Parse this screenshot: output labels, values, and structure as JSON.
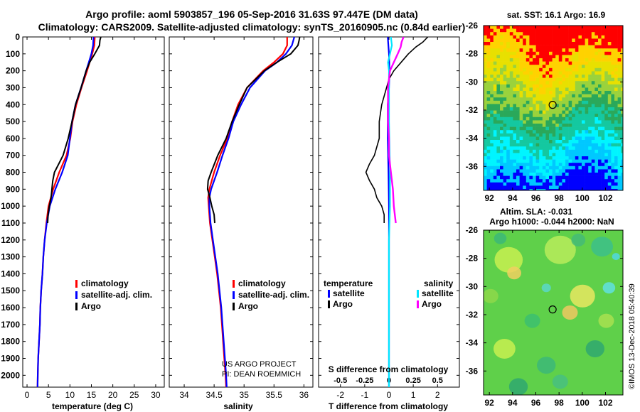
{
  "header": {
    "line1": "Argo profile: aoml 5903857_196 05-Sep-2016 31.63S 97.447E (DM data)",
    "line2": "Climatology: CARS2009. Satellite-adjusted climatology: synTS_20160905.nc (0.84d earlier)"
  },
  "colors": {
    "climatology": "#ff0000",
    "satellite": "#0000ff",
    "argo": "#000000",
    "sat_salinity": "#00e5ff",
    "argo_salinity": "#ff00ff"
  },
  "credit": {
    "line1": "US ARGO PROJECT",
    "line2": "PI: DEAN ROEMMICH"
  },
  "watermark": "©IMOS 13-Dec-2018 05:40:39",
  "chart_data": [
    {
      "type": "line",
      "id": "temperature",
      "xlabel": "temperature (deg C)",
      "ylabel": "",
      "xlim": [
        -1,
        32
      ],
      "ylim": [
        2070,
        0
      ],
      "x_ticks": [
        0,
        5,
        10,
        15,
        20,
        25,
        30
      ],
      "y_ticks": [
        0,
        100,
        200,
        300,
        400,
        500,
        600,
        700,
        800,
        900,
        1000,
        1100,
        1200,
        1300,
        1400,
        1500,
        1600,
        1700,
        1800,
        1900,
        2000
      ],
      "legend": [
        "climatology",
        "satellite-adj. clim.",
        "Argo"
      ],
      "series": [
        {
          "name": "climatology",
          "depth": [
            0,
            50,
            100,
            150,
            200,
            300,
            400,
            500,
            600,
            700,
            800,
            900,
            1000,
            1100,
            1200,
            1300,
            1400,
            1500,
            1600,
            1700,
            1800,
            1900,
            2000,
            2070
          ],
          "values": [
            15.8,
            15.7,
            15.2,
            14.6,
            14.0,
            12.7,
            11.5,
            10.6,
            10.1,
            9.2,
            7.5,
            6.1,
            5.0,
            4.5,
            4.1,
            3.8,
            3.6,
            3.3,
            3.1,
            3.0,
            2.8,
            2.6,
            2.5,
            2.45
          ]
        },
        {
          "name": "satellite-adj. clim.",
          "depth": [
            0,
            50,
            100,
            150,
            200,
            300,
            400,
            500,
            600,
            700,
            800,
            900,
            1000,
            1100,
            1200,
            1300,
            1400,
            1500,
            1600,
            1700,
            1800,
            1900,
            2000,
            2070
          ],
          "values": [
            15.5,
            15.4,
            15.0,
            14.4,
            13.8,
            12.6,
            11.3,
            10.5,
            10.0,
            9.5,
            8.2,
            6.6,
            5.3,
            4.6,
            4.1,
            3.8,
            3.6,
            3.3,
            3.1,
            3.0,
            2.8,
            2.6,
            2.5,
            2.45
          ]
        },
        {
          "name": "Argo",
          "depth": [
            0,
            20,
            50,
            100,
            150,
            200,
            250,
            300,
            400,
            500,
            600,
            700,
            750,
            800,
            850,
            900,
            950,
            1000,
            1050,
            1100
          ],
          "values": [
            17.2,
            17.0,
            16.9,
            15.8,
            14.6,
            13.8,
            13.2,
            12.6,
            11.3,
            10.5,
            9.6,
            8.4,
            7.4,
            6.4,
            6.0,
            5.8,
            5.6,
            5.2,
            4.9,
            4.8
          ]
        }
      ]
    },
    {
      "type": "line",
      "id": "salinity",
      "xlabel": "salinity",
      "ylabel": "",
      "xlim": [
        33.75,
        36.15
      ],
      "ylim": [
        2070,
        0
      ],
      "x_ticks": [
        34,
        34.5,
        35,
        35.5,
        36
      ],
      "legend": [
        "climatology",
        "satellite-adj. clim.",
        "Argo"
      ],
      "series": [
        {
          "name": "climatology",
          "depth": [
            0,
            50,
            100,
            150,
            200,
            300,
            400,
            500,
            600,
            700,
            800,
            900,
            950,
            1000,
            1100,
            1200,
            1300,
            1400,
            1500,
            1600,
            1700,
            1800,
            1900,
            2000,
            2070
          ],
          "values": [
            35.72,
            35.72,
            35.65,
            35.5,
            35.32,
            35.05,
            34.9,
            34.8,
            34.72,
            34.6,
            34.5,
            34.42,
            34.4,
            34.41,
            34.43,
            34.47,
            34.51,
            34.55,
            34.58,
            34.61,
            34.63,
            34.65,
            34.67,
            34.69,
            34.7
          ]
        },
        {
          "name": "satellite-adj. clim.",
          "depth": [
            0,
            50,
            100,
            150,
            200,
            300,
            400,
            500,
            600,
            700,
            800,
            900,
            950,
            1000,
            1100,
            1200,
            1300,
            1400,
            1500,
            1600,
            1700,
            1800,
            1900,
            2000,
            2070
          ],
          "values": [
            35.84,
            35.8,
            35.7,
            35.55,
            35.35,
            35.1,
            34.95,
            34.82,
            34.74,
            34.64,
            34.55,
            34.45,
            34.42,
            34.42,
            34.44,
            34.48,
            34.52,
            34.56,
            34.59,
            34.62,
            34.64,
            34.66,
            34.68,
            34.7,
            34.71
          ]
        },
        {
          "name": "Argo",
          "depth": [
            0,
            20,
            50,
            100,
            150,
            200,
            300,
            400,
            500,
            600,
            700,
            800,
            850,
            900,
            950,
            1000,
            1050,
            1100
          ],
          "values": [
            35.93,
            35.92,
            35.9,
            35.78,
            35.55,
            35.34,
            35.05,
            34.92,
            34.8,
            34.7,
            34.56,
            34.45,
            34.4,
            34.39,
            34.43,
            34.46,
            34.5,
            34.51
          ]
        }
      ]
    },
    {
      "type": "line",
      "id": "difference",
      "xlabel": "T difference from climatology",
      "xlabel_top": "S difference from climatology",
      "xlim": [
        -2.9,
        2.9
      ],
      "ylim": [
        2070,
        0
      ],
      "x_ticks": [
        -2,
        -1,
        0,
        1,
        2
      ],
      "x_ticks_top": [
        -0.5,
        -0.25,
        0,
        0.25,
        0.5
      ],
      "legend_left_title": "temperature",
      "legend_right_title": "salinity",
      "legend": [
        "satellite",
        "Argo",
        "satellite",
        "Argo"
      ],
      "series": [
        {
          "name": "T satellite",
          "depth": [
            0,
            100,
            200,
            300,
            400,
            600,
            800,
            1000,
            1200,
            1500,
            2000,
            2070
          ],
          "values": [
            -0.05,
            0.0,
            0.02,
            0.0,
            -0.05,
            -0.05,
            -0.02,
            0.0,
            0.0,
            0.0,
            0.0,
            0.0
          ]
        },
        {
          "name": "T Argo",
          "depth": [
            0,
            30,
            60,
            100,
            150,
            200,
            250,
            300,
            400,
            500,
            600,
            700,
            750,
            800,
            850,
            900,
            950,
            1000,
            1050,
            1100
          ],
          "values": [
            1.6,
            1.4,
            1.1,
            0.8,
            0.5,
            0.2,
            0.0,
            -0.1,
            -0.3,
            -0.4,
            -0.4,
            -0.6,
            -0.8,
            -0.95,
            -0.8,
            -0.6,
            -0.5,
            -0.3,
            -0.2,
            -0.2
          ]
        },
        {
          "name": "S satellite",
          "depth": [
            0,
            50,
            100,
            150,
            200,
            300,
            500,
            800,
            1000,
            1200,
            1500,
            2000,
            2070
          ],
          "values": [
            0.02,
            0.03,
            0.01,
            -0.01,
            0.0,
            0.0,
            0.0,
            0.01,
            0.01,
            0.0,
            0.0,
            0.0,
            0.0
          ]
        },
        {
          "name": "S Argo",
          "depth": [
            0,
            30,
            60,
            100,
            150,
            200,
            300,
            400,
            500,
            600,
            700,
            800,
            900,
            1000,
            1100
          ],
          "values": [
            0.15,
            0.13,
            0.12,
            0.09,
            0.05,
            0.01,
            -0.01,
            -0.01,
            -0.01,
            0.0,
            0.0,
            0.02,
            0.04,
            0.05,
            0.07
          ]
        }
      ]
    },
    {
      "type": "heatmap",
      "id": "sst-map",
      "title": "sat. SST: 16.1 Argo: 16.9",
      "x_ticks": [
        92,
        94,
        96,
        98,
        100,
        102
      ],
      "y_ticks": [
        -26,
        -28,
        -30,
        -32,
        -34,
        -36
      ],
      "xlim": [
        91.5,
        103.5
      ],
      "ylim": [
        -37.7,
        -26
      ],
      "marker": [
        97.447,
        -31.63
      ]
    },
    {
      "type": "heatmap",
      "id": "sla-map",
      "title_line1": "Altim. SLA: -0.031",
      "title_line2": "Argo h1000: -0.044 h2000: NaN",
      "x_ticks": [
        92,
        94,
        96,
        98,
        100,
        102
      ],
      "y_ticks": [
        -26,
        -28,
        -30,
        -32,
        -34,
        -36
      ],
      "xlim": [
        91.5,
        103.5
      ],
      "ylim": [
        -37.7,
        -26
      ],
      "marker": [
        97.447,
        -31.63
      ]
    }
  ]
}
